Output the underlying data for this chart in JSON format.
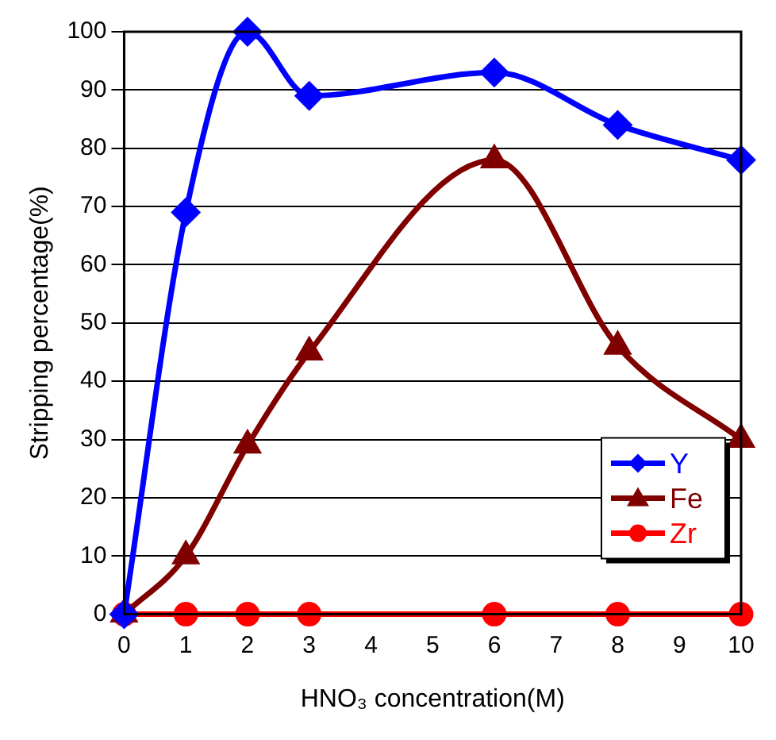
{
  "chart_data": {
    "type": "line",
    "xlabel": "HNO₃ concentration(M)",
    "ylabel": "Stripping percentage(%)",
    "x": [
      0,
      1,
      2,
      3,
      6,
      8,
      10
    ],
    "series": [
      {
        "name": "Y",
        "color": "#0000ff",
        "marker": "diamond",
        "values": [
          0,
          69,
          100,
          89,
          93,
          84,
          78
        ]
      },
      {
        "name": "Fe",
        "color": "#800000",
        "marker": "triangle",
        "values": [
          0,
          10,
          29,
          45,
          78,
          46,
          30
        ]
      },
      {
        "name": "Zr",
        "color": "#ff0000",
        "marker": "circle",
        "values": [
          0,
          0,
          0,
          0,
          0,
          0,
          0
        ]
      }
    ],
    "xlim": [
      0,
      10
    ],
    "xticks": [
      0,
      1,
      2,
      3,
      4,
      5,
      6,
      7,
      8,
      9,
      10
    ],
    "ylim": [
      0,
      100
    ],
    "yticks": [
      0,
      10,
      20,
      30,
      40,
      50,
      60,
      70,
      80,
      90,
      100
    ],
    "grid": "y",
    "legend": "bottom right",
    "line_style": "solid"
  }
}
